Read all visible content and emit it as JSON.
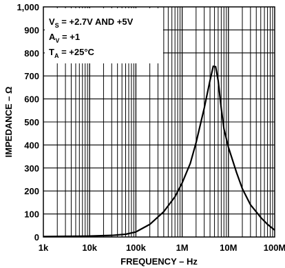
{
  "chart_data": {
    "type": "line",
    "title": "",
    "xlabel": "FREQUENCY – Hz",
    "ylabel": "IMPEDANCE – Ω",
    "xscale": "log",
    "xlim": [
      1000,
      100000000
    ],
    "ylim": [
      0,
      1000
    ],
    "grid": true,
    "x_tick_labels": [
      "1k",
      "10k",
      "100k",
      "1M",
      "10M",
      "100M"
    ],
    "x_tick_values": [
      1000,
      10000,
      100000,
      1000000,
      10000000,
      100000000
    ],
    "y_tick_labels": [
      "0",
      "100",
      "200",
      "300",
      "400",
      "500",
      "600",
      "700",
      "800",
      "900",
      "1,000"
    ],
    "y_tick_values": [
      0,
      100,
      200,
      300,
      400,
      500,
      600,
      700,
      800,
      900,
      1000
    ],
    "annotation": {
      "line1_main": "V",
      "line1_sub": "S",
      "line1_rest": " = +2.7V AND +5V",
      "line2_main": "A",
      "line2_sub": "V",
      "line2_rest": " = +1",
      "line3_main": "T",
      "line3_sub": "A",
      "line3_rest": " = +25°C"
    },
    "series": [
      {
        "x": [
          1000,
          3000,
          10000,
          30000,
          60000,
          100000,
          200000,
          400000,
          700000,
          1000000,
          1500000,
          2000000,
          3000000,
          4000000,
          4700000,
          5300000,
          6000000,
          7000000,
          8000000,
          10000000,
          15000000,
          20000000,
          30000000,
          50000000,
          70000000,
          100000000
        ],
        "y": [
          2,
          3,
          4,
          7,
          12,
          22,
          55,
          110,
          175,
          235,
          320,
          410,
          560,
          680,
          742,
          740,
          680,
          560,
          470,
          390,
          280,
          210,
          140,
          85,
          55,
          30
        ]
      }
    ]
  }
}
